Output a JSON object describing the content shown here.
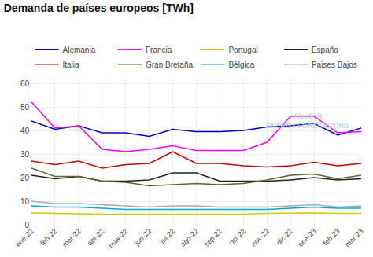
{
  "chart_data": {
    "type": "line",
    "title": "Demanda de países europeos [TWh]",
    "categories": [
      "ene-22",
      "feb-22",
      "mar-22",
      "abr-22",
      "may-22",
      "jun-22",
      "jul-22",
      "ago-22",
      "sep-22",
      "oct-22",
      "nov-22",
      "dic-22",
      "ene-23",
      "feb-23",
      "mar-23"
    ],
    "series": [
      {
        "name": "Alemania",
        "color": "#0000cc",
        "values": [
          44,
          40.5,
          42,
          39,
          39,
          37.5,
          40.5,
          39.5,
          39.5,
          40,
          41.5,
          42,
          43,
          38,
          41
        ]
      },
      {
        "name": "Francia",
        "color": "#ff00ff",
        "values": [
          52,
          41,
          42,
          32,
          31,
          32,
          33.5,
          31.5,
          31.5,
          31.5,
          35,
          46,
          46,
          39,
          39.5
        ]
      },
      {
        "name": "Portugal",
        "color": "#cccc00",
        "values": [
          5,
          4.8,
          4.8,
          4.5,
          4.5,
          4.5,
          4.5,
          4.5,
          4.5,
          4.5,
          4.8,
          5,
          5,
          4.8,
          4.8
        ]
      },
      {
        "name": "España",
        "color": "#222222",
        "values": [
          21,
          19.5,
          20.5,
          18.5,
          18.5,
          19,
          22,
          22,
          18.5,
          18.5,
          18.5,
          19,
          20,
          19,
          19.5
        ]
      },
      {
        "name": "Italia",
        "color": "#cc0000",
        "values": [
          27,
          25.5,
          27,
          24,
          25.5,
          26,
          31,
          26,
          26,
          25,
          24.5,
          25,
          26.5,
          25,
          26
        ]
      },
      {
        "name": "Gran Bretaña",
        "color": "#556b2f",
        "values": [
          24,
          20.5,
          20.5,
          18.5,
          18,
          16.5,
          17,
          17.5,
          17,
          17.5,
          19,
          21,
          21.5,
          19.5,
          21
        ]
      },
      {
        "name": "Bélgica",
        "color": "#00aacc",
        "values": [
          8,
          7.5,
          7.5,
          7,
          6.5,
          6.5,
          6.5,
          6.5,
          6.5,
          6.5,
          6.5,
          7,
          7.5,
          7,
          7
        ]
      },
      {
        "name": "Paises Bajos",
        "color": "#aaaaaa",
        "values": [
          10,
          9,
          9,
          8.5,
          8,
          7.5,
          8,
          8,
          7.5,
          7.5,
          7.5,
          8,
          8.5,
          7.5,
          8
        ]
      }
    ],
    "ylim": [
      0,
      62
    ],
    "yticks": [
      0,
      10,
      20,
      30,
      40,
      50,
      60
    ],
    "grid": true,
    "legend": "top",
    "annotations": [
      {
        "text": "AleaSoft\nENERGY FORECASTING",
        "color": "#aaccdd"
      }
    ]
  }
}
